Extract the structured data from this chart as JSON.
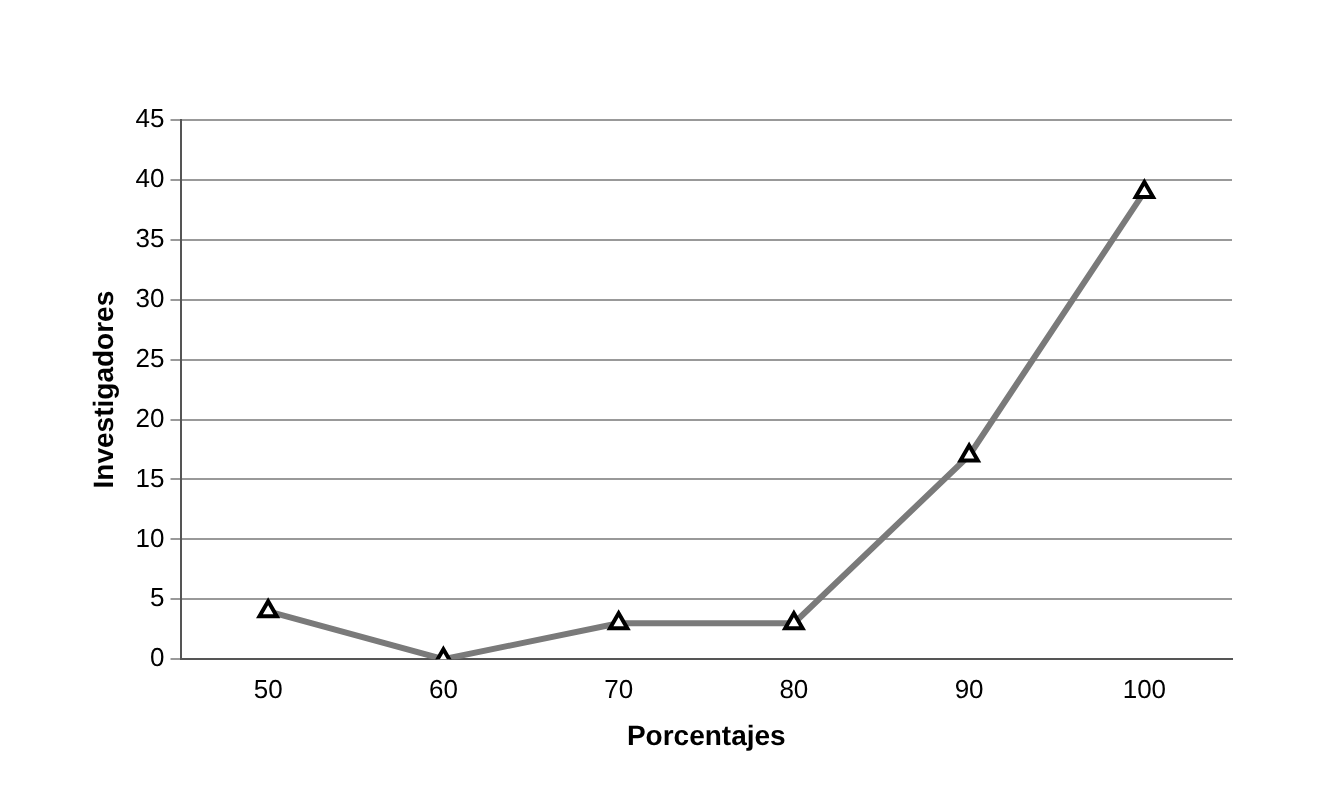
{
  "chart_data": {
    "type": "line",
    "xlabel": "Porcentajes",
    "ylabel": "Investigadores",
    "categories": [
      "50",
      "60",
      "70",
      "80",
      "90",
      "100"
    ],
    "series": [
      {
        "color": "#7a7a7a",
        "values": [
          4,
          0,
          3,
          3,
          17,
          39
        ]
      }
    ],
    "ylim": [
      0,
      45
    ],
    "yticks": [
      0,
      5,
      10,
      15,
      20,
      25,
      30,
      35,
      40,
      45
    ],
    "grid": "y",
    "legend": false,
    "marker": "triangle",
    "line_style": "solid"
  }
}
